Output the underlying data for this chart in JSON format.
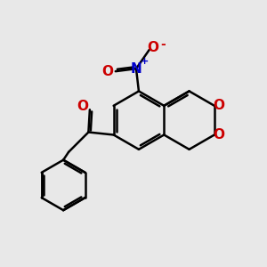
{
  "bg_color": "#e8e8e8",
  "bond_color": "#000000",
  "bond_width": 1.8,
  "N_color": "#0000cc",
  "O_color": "#cc0000",
  "figsize": [
    3.0,
    3.0
  ],
  "dpi": 100,
  "xlim": [
    0,
    10
  ],
  "ylim": [
    0,
    10
  ]
}
